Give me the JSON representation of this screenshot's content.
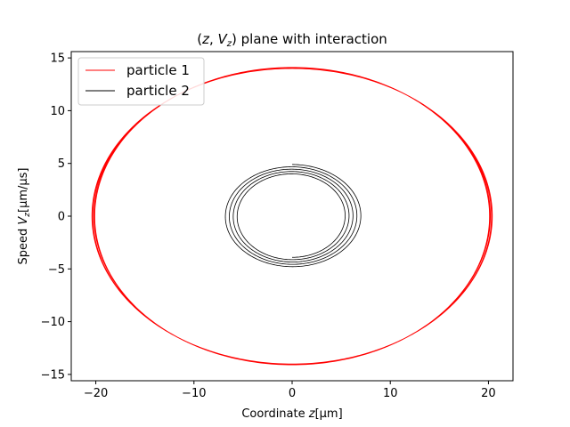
{
  "chart_data": {
    "type": "line",
    "title": "(z, V_z) plane with interaction",
    "title_parts": {
      "prefix": "(",
      "z": "z",
      "comma": ", ",
      "v": "V",
      "sub": "z",
      "suffix": ") plane with interaction"
    },
    "xlabel": "Coordinate z[μm]",
    "xlabel_parts": {
      "text": "Coordinate ",
      "var": "z",
      "unit": "[μm]"
    },
    "ylabel": "Speed V_z[μm/μs]",
    "ylabel_parts": {
      "text": "Speed ",
      "var": "V",
      "sub": "z",
      "unit": "[μm/μs]"
    },
    "xlim": [
      -22.5,
      22.5
    ],
    "ylim": [
      -15.6,
      15.6
    ],
    "xticks": [
      -20,
      -10,
      0,
      10,
      20
    ],
    "xtick_labels": [
      "−20",
      "−10",
      "0",
      "10",
      "20"
    ],
    "yticks": [
      -15,
      -10,
      -5,
      0,
      5,
      10,
      15
    ],
    "ytick_labels": [
      "−15",
      "−10",
      "−5",
      "0",
      "5",
      "10",
      "15"
    ],
    "grid": false,
    "legend_position": "top-left",
    "series": [
      {
        "name": "particle 1",
        "color": "#ff0000",
        "shape": "ellipse-loops",
        "center": [
          0,
          0
        ],
        "radius_x": [
          20.1,
          20.4
        ],
        "radius_y": [
          13.9,
          14.1
        ],
        "loops": 6
      },
      {
        "name": "particle 2",
        "color": "#000000",
        "shape": "spiral",
        "start": [
          0,
          4.9
        ],
        "end": [
          0,
          -3.9
        ],
        "radius_x_range": [
          5.3,
          7.1
        ],
        "radius_y_range": [
          3.9,
          5.1
        ],
        "turns": 4.5
      }
    ]
  }
}
